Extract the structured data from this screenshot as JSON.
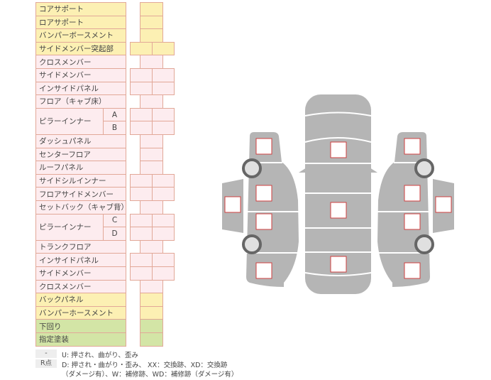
{
  "parts": [
    {
      "label": "コアサポート",
      "color": "y",
      "cols": 1
    },
    {
      "label": "ロアサポート",
      "color": "y",
      "cols": 1
    },
    {
      "label": "バンパーボースメント",
      "color": "y",
      "cols": 1
    },
    {
      "label": "サイドメンバー突起部",
      "color": "y",
      "cols": 2
    },
    {
      "label": "クロスメンバー",
      "color": "p",
      "cols": 1
    },
    {
      "label": "サイドメンバー",
      "color": "p",
      "cols": 2
    },
    {
      "label": "インサイドパネル",
      "color": "p",
      "cols": 2
    },
    {
      "label": "フロア（キャブ床）",
      "color": "p",
      "cols": 1
    },
    {
      "label": "ピラーインナー",
      "color": "p",
      "cols": 2,
      "subs": [
        "A",
        "B"
      ]
    },
    {
      "label": "ダッシュパネル",
      "color": "p",
      "cols": 1
    },
    {
      "label": "センターフロア",
      "color": "p",
      "cols": 1
    },
    {
      "label": "ルーフパネル",
      "color": "p",
      "cols": 1
    },
    {
      "label": "サイドシルインナー",
      "color": "p",
      "cols": 2
    },
    {
      "label": "フロアサイドメンバー",
      "color": "p",
      "cols": 2
    },
    {
      "label": "セットバック（キャブ背）",
      "color": "p",
      "cols": 1
    },
    {
      "label": "ピラーインナー",
      "color": "p",
      "cols": 2,
      "subs": [
        "C",
        "D"
      ]
    },
    {
      "label": "トランクフロア",
      "color": "p",
      "cols": 1
    },
    {
      "label": "インサイドパネル",
      "color": "p",
      "cols": 2
    },
    {
      "label": "サイドメンバー",
      "color": "p",
      "cols": 2
    },
    {
      "label": "クロスメンバー",
      "color": "p",
      "cols": 1
    },
    {
      "label": "バックパネル",
      "color": "y",
      "cols": 1
    },
    {
      "label": "バンパーホースメント",
      "color": "y",
      "cols": 1
    },
    {
      "label": "下回り",
      "color": "g",
      "cols": 1
    },
    {
      "label": "指定塗装",
      "color": "g",
      "cols": 1
    }
  ],
  "legend": {
    "key1": "-",
    "text1": "U: 押され、曲がり、歪み",
    "key2": "R点",
    "text2": "D: 押され・曲がり・歪み、 XX：交換跡、XD：交換跡",
    "text3": "（ダメージ有）、W：補修跡、WD：補修跡（ダメージ有）"
  },
  "colors": {
    "yellow": "#fcf0b3",
    "pink": "#fdecef",
    "green": "#d3e5a6",
    "border": "#e2a898",
    "car": "#b5b5b5",
    "marker": "#d04040"
  }
}
